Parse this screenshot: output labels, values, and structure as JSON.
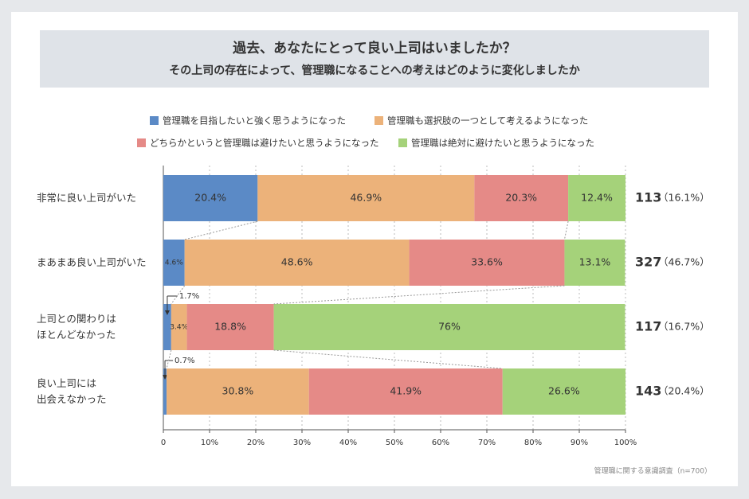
{
  "chart_data": {
    "type": "bar",
    "orientation": "horizontal",
    "stacked": true,
    "title": "過去、あなたにとって良い上司はいましたか？",
    "subtitle": "その上司の存在によって、管理職になることへの考えはどのように変化しましたか",
    "categories": [
      "非常に良い上司がいた",
      "まあまあ良い上司がいた",
      "上司との関わりは\nほとんどなかった",
      "良い上司には\n出会えなかった"
    ],
    "series": [
      {
        "name": "管理職を目指したいと強く思うようになった",
        "color": "#5b8ac6",
        "values": [
          20.4,
          4.6,
          1.7,
          0.7
        ],
        "value_labels": [
          "20.4%",
          "4.6%",
          "1.7%",
          "0.7%"
        ]
      },
      {
        "name": "管理職も選択肢の一つとして考えるようになった",
        "color": "#ecb27a",
        "values": [
          46.9,
          48.6,
          3.4,
          30.8
        ],
        "value_labels": [
          "46.9%",
          "48.6%",
          "3.4%",
          "30.8%"
        ]
      },
      {
        "name": "どちらかというと管理職は避けたいと思うようになった",
        "color": "#e58a87",
        "values": [
          20.3,
          33.6,
          18.8,
          41.9
        ],
        "value_labels": [
          "20.3%",
          "33.6%",
          "18.8%",
          "41.9%"
        ]
      },
      {
        "name": "管理職は絶対に避けたいと思うようになった",
        "color": "#a5d27a",
        "values": [
          12.4,
          13.1,
          76,
          26.6
        ],
        "value_labels": [
          "12.4%",
          "13.1%",
          "76%",
          "26.6%"
        ]
      }
    ],
    "counts": [
      113,
      327,
      117,
      143
    ],
    "shares": [
      16.1,
      46.7,
      16.7,
      20.4
    ],
    "share_labels": [
      "（16.1%）",
      "（46.7%）",
      "（16.7%）",
      "（20.4%）"
    ],
    "xlim": [
      0,
      100
    ],
    "xticks": [
      0,
      {
        "value": 10,
        "label": "10%"
      },
      {
        "value": 20,
        "label": "20%"
      },
      {
        "value": 30,
        "label": "30%"
      },
      {
        "value": 40,
        "label": "40%"
      },
      {
        "value": 50,
        "label": "50%"
      },
      {
        "value": 60,
        "label": "60%"
      },
      {
        "value": 70,
        "label": "70%"
      },
      {
        "value": 80,
        "label": "80%"
      },
      {
        "value": 90,
        "label": "90%"
      },
      {
        "value": 100,
        "label": "100%"
      }
    ],
    "grid": true,
    "source": "管理職に関する意識調査（n=700）"
  }
}
